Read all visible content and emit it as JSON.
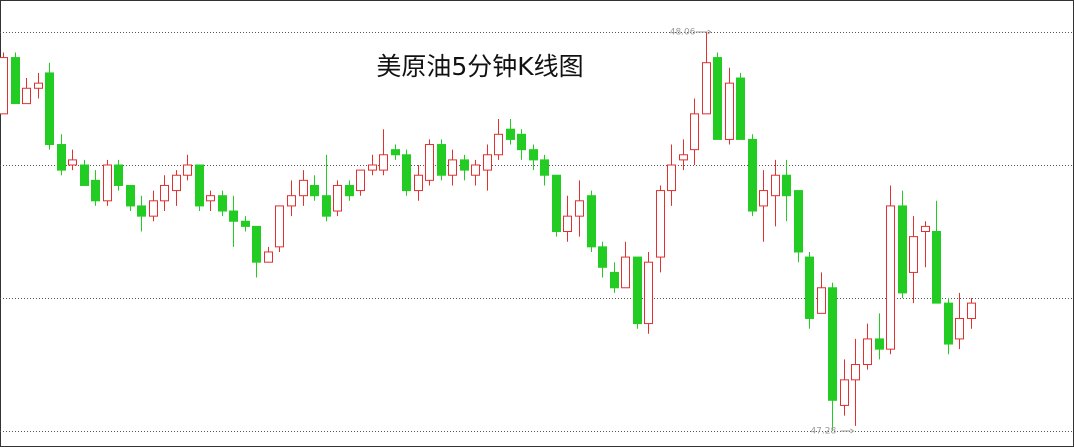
{
  "chart_data": {
    "type": "candlestick",
    "title": "美原油5分钟K线图",
    "ylim": [
      47.28,
      48.06
    ],
    "gridlines": [
      48.06,
      47.8,
      47.54,
      47.28
    ],
    "up_color": "#e03030",
    "down_color": "#22cc22",
    "high_label": 48.06,
    "low_label": 47.28,
    "ohlc": [
      [
        47.9,
        48.02,
        47.9,
        48.01
      ],
      [
        48.01,
        48.02,
        47.92,
        47.92
      ],
      [
        47.92,
        47.97,
        47.92,
        47.95
      ],
      [
        47.95,
        47.98,
        47.93,
        47.96
      ],
      [
        47.98,
        48.0,
        47.83,
        47.84
      ],
      [
        47.84,
        47.86,
        47.78,
        47.79
      ],
      [
        47.8,
        47.83,
        47.79,
        47.81
      ],
      [
        47.8,
        47.81,
        47.76,
        47.76
      ],
      [
        47.77,
        47.79,
        47.72,
        47.73
      ],
      [
        47.73,
        47.81,
        47.72,
        47.8
      ],
      [
        47.8,
        47.81,
        47.75,
        47.76
      ],
      [
        47.76,
        47.76,
        47.71,
        47.72
      ],
      [
        47.72,
        47.74,
        47.67,
        47.7
      ],
      [
        47.7,
        47.75,
        47.69,
        47.73
      ],
      [
        47.73,
        47.78,
        47.71,
        47.76
      ],
      [
        47.75,
        47.79,
        47.72,
        47.78
      ],
      [
        47.78,
        47.82,
        47.77,
        47.8
      ],
      [
        47.8,
        47.8,
        47.71,
        47.72
      ],
      [
        47.73,
        47.75,
        47.71,
        47.74
      ],
      [
        47.74,
        47.75,
        47.7,
        47.71
      ],
      [
        47.71,
        47.74,
        47.64,
        47.69
      ],
      [
        47.69,
        47.7,
        47.67,
        47.68
      ],
      [
        47.68,
        47.68,
        47.58,
        47.61
      ],
      [
        47.61,
        47.64,
        47.61,
        47.63
      ],
      [
        47.64,
        47.72,
        47.63,
        47.72
      ],
      [
        47.72,
        47.77,
        47.7,
        47.74
      ],
      [
        47.74,
        47.79,
        47.72,
        47.77
      ],
      [
        47.76,
        47.78,
        47.73,
        47.74
      ],
      [
        47.74,
        47.82,
        47.69,
        47.7
      ],
      [
        47.71,
        47.77,
        47.7,
        47.76
      ],
      [
        47.76,
        47.77,
        47.73,
        47.74
      ],
      [
        47.75,
        47.79,
        47.74,
        47.79
      ],
      [
        47.79,
        47.82,
        47.78,
        47.8
      ],
      [
        47.79,
        47.87,
        47.78,
        47.82
      ],
      [
        47.83,
        47.84,
        47.81,
        47.82
      ],
      [
        47.82,
        47.83,
        47.74,
        47.75
      ],
      [
        47.75,
        47.8,
        47.73,
        47.78
      ],
      [
        47.77,
        47.85,
        47.76,
        47.84
      ],
      [
        47.84,
        47.85,
        47.77,
        47.78
      ],
      [
        47.78,
        47.83,
        47.76,
        47.81
      ],
      [
        47.81,
        47.82,
        47.77,
        47.79
      ],
      [
        47.78,
        47.81,
        47.76,
        47.8
      ],
      [
        47.79,
        47.84,
        47.75,
        47.82
      ],
      [
        47.82,
        47.89,
        47.81,
        47.86
      ],
      [
        47.87,
        47.89,
        47.84,
        47.85
      ],
      [
        47.86,
        47.87,
        47.81,
        47.83
      ],
      [
        47.83,
        47.84,
        47.79,
        47.81
      ],
      [
        47.81,
        47.82,
        47.76,
        47.78
      ],
      [
        47.78,
        47.78,
        47.66,
        47.67
      ],
      [
        47.67,
        47.74,
        47.65,
        47.7
      ],
      [
        47.7,
        47.77,
        47.66,
        47.73
      ],
      [
        47.74,
        47.75,
        47.63,
        47.64
      ],
      [
        47.64,
        47.65,
        47.58,
        47.6
      ],
      [
        47.59,
        47.61,
        47.55,
        47.56
      ],
      [
        47.56,
        47.65,
        47.56,
        47.62
      ],
      [
        47.62,
        47.62,
        47.48,
        47.49
      ],
      [
        47.49,
        47.63,
        47.47,
        47.61
      ],
      [
        47.62,
        47.76,
        47.59,
        47.75
      ],
      [
        47.75,
        47.84,
        47.72,
        47.8
      ],
      [
        47.81,
        47.85,
        47.79,
        47.82
      ],
      [
        47.83,
        47.93,
        47.8,
        47.9
      ],
      [
        47.9,
        48.06,
        47.9,
        48.0
      ],
      [
        48.01,
        48.02,
        47.85,
        47.85
      ],
      [
        47.85,
        47.99,
        47.84,
        47.96
      ],
      [
        47.97,
        47.98,
        47.85,
        47.85
      ],
      [
        47.85,
        47.86,
        47.7,
        47.71
      ],
      [
        47.72,
        47.79,
        47.65,
        47.75
      ],
      [
        47.74,
        47.81,
        47.68,
        47.78
      ],
      [
        47.78,
        47.81,
        47.69,
        47.74
      ],
      [
        47.75,
        47.75,
        47.61,
        47.63
      ],
      [
        47.62,
        47.63,
        47.48,
        47.5
      ],
      [
        47.51,
        47.59,
        47.51,
        47.56
      ],
      [
        47.56,
        47.57,
        47.28,
        47.34
      ],
      [
        47.33,
        47.42,
        47.31,
        47.38
      ],
      [
        47.38,
        47.46,
        47.29,
        47.41
      ],
      [
        47.41,
        47.49,
        47.4,
        47.46
      ],
      [
        47.46,
        47.51,
        47.42,
        47.44
      ],
      [
        47.44,
        47.76,
        47.43,
        47.72
      ],
      [
        47.72,
        47.75,
        47.54,
        47.55
      ],
      [
        47.59,
        47.7,
        47.53,
        47.66
      ],
      [
        47.67,
        47.69,
        47.6,
        47.68
      ],
      [
        47.67,
        47.73,
        47.53,
        47.53
      ],
      [
        47.53,
        47.54,
        47.43,
        47.45
      ],
      [
        47.46,
        47.55,
        47.44,
        47.5
      ],
      [
        47.5,
        47.54,
        47.48,
        47.53
      ]
    ]
  }
}
